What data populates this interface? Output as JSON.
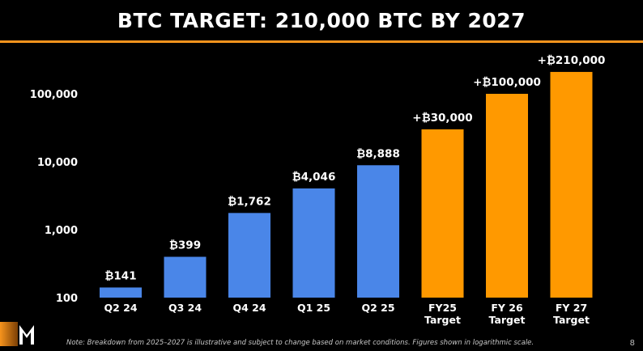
{
  "title": "BTC TARGET: 210,000 BTC BY 2027",
  "colors": {
    "actual": "#4a86e8",
    "target": "#ff9900",
    "accent": "#f7941d",
    "background": "#000000"
  },
  "chart_data": {
    "type": "bar",
    "title": "BTC TARGET: 210,000 BTC BY 2027",
    "xlabel": "",
    "ylabel": "",
    "yscale": "log",
    "ylim": [
      100,
      210000
    ],
    "yticks": [
      100,
      1000,
      10000,
      100000
    ],
    "ytick_labels": [
      "100",
      "1,000",
      "10,000",
      "100,000"
    ],
    "grid": false,
    "legend": "none",
    "categories": [
      "Q2 24",
      "Q3 24",
      "Q4 24",
      "Q1 25",
      "Q2 25",
      "FY25 Target",
      "FY 26 Target",
      "FY 27 Target"
    ],
    "bars": [
      {
        "category": "Q2 24",
        "lines": [
          "Q2 24"
        ],
        "value": 141,
        "label": "₿141",
        "kind": "actual"
      },
      {
        "category": "Q3 24",
        "lines": [
          "Q3 24"
        ],
        "value": 399,
        "label": "₿399",
        "kind": "actual"
      },
      {
        "category": "Q4 24",
        "lines": [
          "Q4 24"
        ],
        "value": 1762,
        "label": "₿1,762",
        "kind": "actual"
      },
      {
        "category": "Q1 25",
        "lines": [
          "Q1 25"
        ],
        "value": 4046,
        "label": "₿4,046",
        "kind": "actual"
      },
      {
        "category": "Q2 25",
        "lines": [
          "Q2 25"
        ],
        "value": 8888,
        "label": "₿8,888",
        "kind": "actual"
      },
      {
        "category": "FY25 Target",
        "lines": [
          "FY25",
          "Target"
        ],
        "value": 30000,
        "label": "+₿30,000",
        "kind": "target"
      },
      {
        "category": "FY 26 Target",
        "lines": [
          "FY 26",
          "Target"
        ],
        "value": 100000,
        "label": "+₿100,000",
        "kind": "target"
      },
      {
        "category": "FY 27 Target",
        "lines": [
          "FY 27",
          "Target"
        ],
        "value": 210000,
        "label": "+₿210,000",
        "kind": "target"
      }
    ]
  },
  "footer": {
    "note": "Note: Breakdown from 2025–2027 is illustrative and subject to change based on market conditions. Figures shown in logarithmic scale.",
    "page_number": "8"
  }
}
